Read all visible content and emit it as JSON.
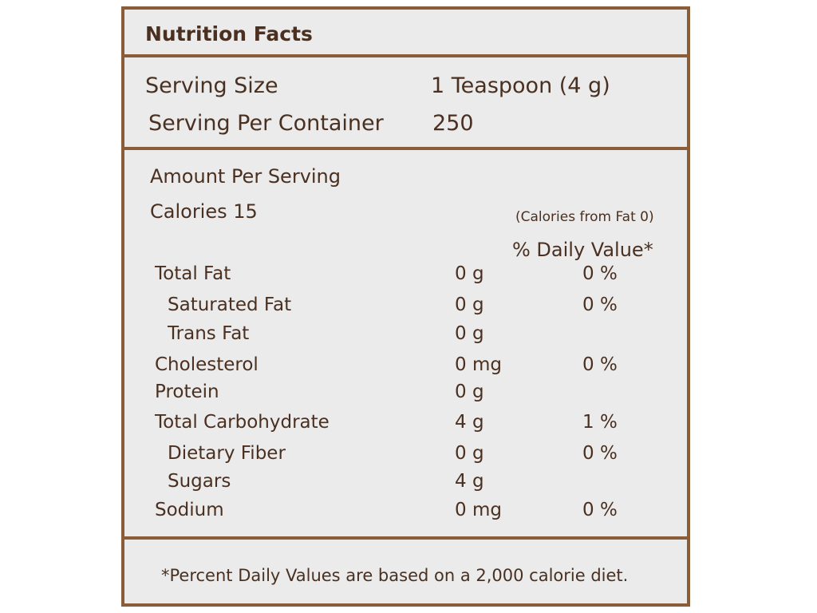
{
  "title": "Nutrition Facts",
  "serving": {
    "size_label": "Serving Size",
    "size_value": "1  Teaspoon (4 g)",
    "per_label": "Serving Per Container",
    "per_value": "250"
  },
  "amount_per_serving": "Amount Per Serving",
  "calories": "Calories 15",
  "calories_from_fat": "(Calories from Fat 0)",
  "dv_header": "% Daily Value*",
  "nutrients": [
    {
      "name": "Total Fat",
      "amount": "0 g",
      "dv": "0 %"
    },
    {
      "name": "Saturated Fat",
      "amount": "0 g",
      "dv": "0 %"
    },
    {
      "name": "Trans Fat",
      "amount": "0 g",
      "dv": ""
    },
    {
      "name": "Cholesterol",
      "amount": "0 mg",
      "dv": "0 %"
    },
    {
      "name": "Protein",
      "amount": "0 g",
      "dv": ""
    },
    {
      "name": "Total Carbohydrate",
      "amount": "4 g",
      "dv": "1 %"
    },
    {
      "name": "Dietary Fiber",
      "amount": "0 g",
      "dv": "0 %"
    },
    {
      "name": "Sugars",
      "amount": "4 g",
      "dv": ""
    },
    {
      "name": "Sodium",
      "amount": "0 mg",
      "dv": "0 %"
    }
  ],
  "footnote": "*Percent Daily Values are based on a 2,000 calorie diet."
}
